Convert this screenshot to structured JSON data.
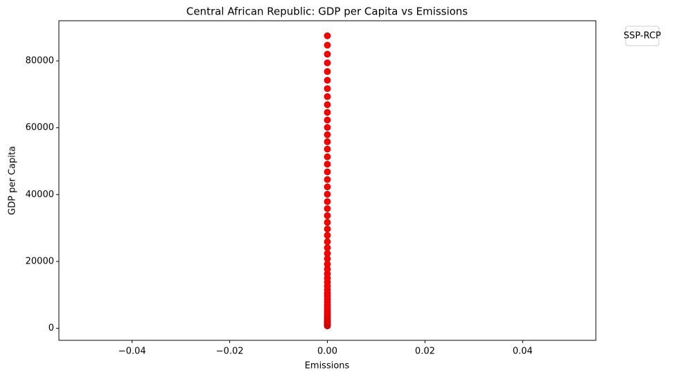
{
  "chart_data": {
    "type": "scatter",
    "title": "Central African Republic: GDP per Capita vs Emissions",
    "x_label": "Emissions",
    "y_label": "GDP per Capita",
    "legend_title": "SSP-RCP",
    "color": "#ff0000",
    "x": [
      0,
      0,
      0,
      0,
      0,
      0,
      0,
      0,
      0,
      0,
      0,
      0,
      0,
      0,
      0,
      0,
      0,
      0,
      0,
      0,
      0,
      0,
      0,
      0,
      0,
      0,
      0,
      0,
      0,
      0,
      0,
      0,
      0,
      0,
      0,
      0,
      0,
      0,
      0,
      0,
      0,
      0,
      0,
      0,
      0,
      0,
      0,
      0,
      0,
      0,
      0,
      0,
      0,
      0,
      0,
      0,
      0,
      0,
      0,
      0,
      0,
      0,
      0
    ],
    "values": [
      700,
      800,
      900,
      1000,
      1150,
      1300,
      1500,
      1700,
      1900,
      2150,
      2400,
      2700,
      3000,
      3400,
      3800,
      4200,
      4700,
      5200,
      5800,
      6400,
      7100,
      7900,
      8700,
      9600,
      10500,
      11500,
      12600,
      13800,
      15000,
      16300,
      17700,
      19200,
      20800,
      22400,
      24100,
      25900,
      27800,
      29700,
      31700,
      33700,
      35800,
      37900,
      40100,
      42300,
      44500,
      46800,
      49100,
      51300,
      53600,
      55800,
      57900,
      60100,
      62300,
      64600,
      66900,
      69300,
      71700,
      74200,
      76800,
      79400,
      82000,
      84700,
      87500
    ],
    "xlim": [
      -0.055,
      0.055
    ],
    "xticks": [
      {
        "value": -0.04,
        "label": "−0.04"
      },
      {
        "value": -0.02,
        "label": "−0.02"
      },
      {
        "value": 0,
        "label": "0.00"
      },
      {
        "value": 0.02,
        "label": "0.02"
      },
      {
        "value": 0.04,
        "label": "0.04"
      }
    ],
    "ylim": [
      -3600,
      92000
    ],
    "yticks": [
      0,
      20000,
      40000,
      60000,
      80000
    ]
  }
}
